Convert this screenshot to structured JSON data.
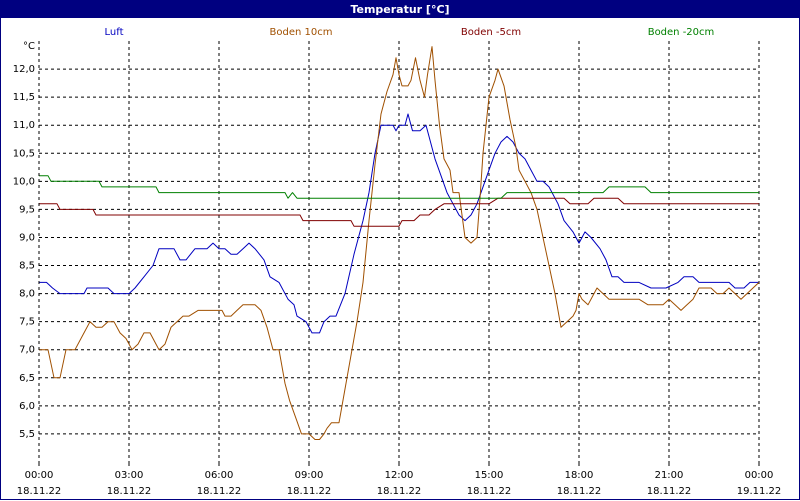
{
  "window": {
    "title": "Temperatur [°C]"
  },
  "chart_data": {
    "type": "line",
    "title": "Temperatur [°C]",
    "ylabel": "°C",
    "xlabel": "",
    "ylim": [
      5.0,
      12.5
    ],
    "xlim": [
      0,
      24
    ],
    "grid": true,
    "legend_position": "top",
    "yticks": [
      5.5,
      6.0,
      6.5,
      7.0,
      7.5,
      8.0,
      8.5,
      9.0,
      9.5,
      10.0,
      10.5,
      11.0,
      11.5,
      12.0
    ],
    "ytick_labels": [
      "5,5",
      "6,0",
      "6,5",
      "7,0",
      "7,5",
      "8,0",
      "8,5",
      "9,0",
      "9,5",
      "10,0",
      "10,5",
      "11,0",
      "11,5",
      "12,0"
    ],
    "xticks": [
      0,
      3,
      6,
      9,
      12,
      15,
      18,
      21,
      24
    ],
    "xtick_labels": [
      [
        "00:00",
        "18.11.22"
      ],
      [
        "03:00",
        "18.11.22"
      ],
      [
        "06:00",
        "18.11.22"
      ],
      [
        "09:00",
        "18.11.22"
      ],
      [
        "12:00",
        "18.11.22"
      ],
      [
        "15:00",
        "18.11.22"
      ],
      [
        "18:00",
        "18.11.22"
      ],
      [
        "21:00",
        "18.11.22"
      ],
      [
        "00:00",
        "19.11.22"
      ]
    ],
    "series": [
      {
        "name": "Luft",
        "color": "#0000c0",
        "points": [
          [
            0,
            8.2
          ],
          [
            0.25,
            8.2
          ],
          [
            0.45,
            8.1
          ],
          [
            0.7,
            8.0
          ],
          [
            1.5,
            8.0
          ],
          [
            1.6,
            8.1
          ],
          [
            2.3,
            8.1
          ],
          [
            2.5,
            8.0
          ],
          [
            3.0,
            8.0
          ],
          [
            3.2,
            8.1
          ],
          [
            3.5,
            8.3
          ],
          [
            3.8,
            8.5
          ],
          [
            4.0,
            8.8
          ],
          [
            4.5,
            8.8
          ],
          [
            4.7,
            8.6
          ],
          [
            4.9,
            8.6
          ],
          [
            5.2,
            8.8
          ],
          [
            5.6,
            8.8
          ],
          [
            5.8,
            8.9
          ],
          [
            6.0,
            8.8
          ],
          [
            6.2,
            8.8
          ],
          [
            6.4,
            8.7
          ],
          [
            6.6,
            8.7
          ],
          [
            6.8,
            8.8
          ],
          [
            7.0,
            8.9
          ],
          [
            7.2,
            8.8
          ],
          [
            7.5,
            8.6
          ],
          [
            7.7,
            8.3
          ],
          [
            8.0,
            8.2
          ],
          [
            8.3,
            7.9
          ],
          [
            8.5,
            7.8
          ],
          [
            8.6,
            7.6
          ],
          [
            8.9,
            7.5
          ],
          [
            9.1,
            7.3
          ],
          [
            9.35,
            7.3
          ],
          [
            9.5,
            7.5
          ],
          [
            9.7,
            7.6
          ],
          [
            9.9,
            7.6
          ],
          [
            10.2,
            8.0
          ],
          [
            10.5,
            8.7
          ],
          [
            10.8,
            9.3
          ],
          [
            11.0,
            9.8
          ],
          [
            11.2,
            10.5
          ],
          [
            11.4,
            11.0
          ],
          [
            11.8,
            11.0
          ],
          [
            11.9,
            10.9
          ],
          [
            12.0,
            11.0
          ],
          [
            12.2,
            11.0
          ],
          [
            12.3,
            11.2
          ],
          [
            12.45,
            10.9
          ],
          [
            12.7,
            10.9
          ],
          [
            12.9,
            11.0
          ],
          [
            13.0,
            10.8
          ],
          [
            13.2,
            10.4
          ],
          [
            13.4,
            10.1
          ],
          [
            13.6,
            9.8
          ],
          [
            13.8,
            9.6
          ],
          [
            14.0,
            9.4
          ],
          [
            14.2,
            9.3
          ],
          [
            14.4,
            9.4
          ],
          [
            14.6,
            9.6
          ],
          [
            14.8,
            9.9
          ],
          [
            15.0,
            10.2
          ],
          [
            15.2,
            10.5
          ],
          [
            15.4,
            10.7
          ],
          [
            15.6,
            10.8
          ],
          [
            15.8,
            10.7
          ],
          [
            16.0,
            10.5
          ],
          [
            16.2,
            10.4
          ],
          [
            16.4,
            10.2
          ],
          [
            16.6,
            10.0
          ],
          [
            16.8,
            10.0
          ],
          [
            17.0,
            9.9
          ],
          [
            17.3,
            9.6
          ],
          [
            17.5,
            9.3
          ],
          [
            17.8,
            9.1
          ],
          [
            18.0,
            8.9
          ],
          [
            18.2,
            9.1
          ],
          [
            18.4,
            9.0
          ],
          [
            18.7,
            8.8
          ],
          [
            18.9,
            8.6
          ],
          [
            19.1,
            8.3
          ],
          [
            19.3,
            8.3
          ],
          [
            19.5,
            8.2
          ],
          [
            20.0,
            8.2
          ],
          [
            20.4,
            8.1
          ],
          [
            20.9,
            8.1
          ],
          [
            21.3,
            8.2
          ],
          [
            21.5,
            8.3
          ],
          [
            21.8,
            8.3
          ],
          [
            22.0,
            8.2
          ],
          [
            23.0,
            8.2
          ],
          [
            23.2,
            8.1
          ],
          [
            23.5,
            8.1
          ],
          [
            23.7,
            8.2
          ],
          [
            24.0,
            8.2
          ]
        ]
      },
      {
        "name": "Boden 10cm",
        "color": "#a05000",
        "points": [
          [
            0,
            7.0
          ],
          [
            0.3,
            7.0
          ],
          [
            0.5,
            6.5
          ],
          [
            0.7,
            6.5
          ],
          [
            0.9,
            7.0
          ],
          [
            1.2,
            7.0
          ],
          [
            1.5,
            7.3
          ],
          [
            1.7,
            7.5
          ],
          [
            1.9,
            7.4
          ],
          [
            2.1,
            7.4
          ],
          [
            2.3,
            7.5
          ],
          [
            2.5,
            7.5
          ],
          [
            2.7,
            7.3
          ],
          [
            2.9,
            7.2
          ],
          [
            3.1,
            7.0
          ],
          [
            3.3,
            7.1
          ],
          [
            3.5,
            7.3
          ],
          [
            3.7,
            7.3
          ],
          [
            3.9,
            7.1
          ],
          [
            4.0,
            7.0
          ],
          [
            4.2,
            7.1
          ],
          [
            4.4,
            7.4
          ],
          [
            4.6,
            7.5
          ],
          [
            4.8,
            7.6
          ],
          [
            5.0,
            7.6
          ],
          [
            5.3,
            7.7
          ],
          [
            6.1,
            7.7
          ],
          [
            6.2,
            7.6
          ],
          [
            6.4,
            7.6
          ],
          [
            6.6,
            7.7
          ],
          [
            6.8,
            7.8
          ],
          [
            7.2,
            7.8
          ],
          [
            7.4,
            7.7
          ],
          [
            7.6,
            7.4
          ],
          [
            7.8,
            7.0
          ],
          [
            8.0,
            7.0
          ],
          [
            8.1,
            6.7
          ],
          [
            8.2,
            6.4
          ],
          [
            8.35,
            6.1
          ],
          [
            8.55,
            5.8
          ],
          [
            8.75,
            5.5
          ],
          [
            9.0,
            5.5
          ],
          [
            9.2,
            5.4
          ],
          [
            9.35,
            5.4
          ],
          [
            9.5,
            5.5
          ],
          [
            9.6,
            5.6
          ],
          [
            9.75,
            5.7
          ],
          [
            10.0,
            5.7
          ],
          [
            10.2,
            6.3
          ],
          [
            10.4,
            6.9
          ],
          [
            10.6,
            7.5
          ],
          [
            10.8,
            8.2
          ],
          [
            11.0,
            9.3
          ],
          [
            11.2,
            10.3
          ],
          [
            11.4,
            11.2
          ],
          [
            11.6,
            11.6
          ],
          [
            11.8,
            11.9
          ],
          [
            11.9,
            12.2
          ],
          [
            12.0,
            11.9
          ],
          [
            12.1,
            11.7
          ],
          [
            12.3,
            11.7
          ],
          [
            12.4,
            11.8
          ],
          [
            12.55,
            12.2
          ],
          [
            12.7,
            11.8
          ],
          [
            12.85,
            11.5
          ],
          [
            12.95,
            11.9
          ],
          [
            13.1,
            12.4
          ],
          [
            13.2,
            11.8
          ],
          [
            13.35,
            11.0
          ],
          [
            13.5,
            10.4
          ],
          [
            13.7,
            10.2
          ],
          [
            13.8,
            9.8
          ],
          [
            14.0,
            9.8
          ],
          [
            14.2,
            9.0
          ],
          [
            14.4,
            8.9
          ],
          [
            14.6,
            9.0
          ],
          [
            14.7,
            9.7
          ],
          [
            14.8,
            10.5
          ],
          [
            15.0,
            11.5
          ],
          [
            15.2,
            11.8
          ],
          [
            15.3,
            12.0
          ],
          [
            15.5,
            11.7
          ],
          [
            15.7,
            11.1
          ],
          [
            15.9,
            10.6
          ],
          [
            16.0,
            10.2
          ],
          [
            16.2,
            10.0
          ],
          [
            16.4,
            9.8
          ],
          [
            16.6,
            9.5
          ],
          [
            16.8,
            9.0
          ],
          [
            17.0,
            8.5
          ],
          [
            17.2,
            8.0
          ],
          [
            17.4,
            7.4
          ],
          [
            17.6,
            7.5
          ],
          [
            17.8,
            7.6
          ],
          [
            17.9,
            7.7
          ],
          [
            18.0,
            8.0
          ],
          [
            18.1,
            7.9
          ],
          [
            18.3,
            7.8
          ],
          [
            18.5,
            8.0
          ],
          [
            18.6,
            8.1
          ],
          [
            18.8,
            8.0
          ],
          [
            19.0,
            7.9
          ],
          [
            20.0,
            7.9
          ],
          [
            20.3,
            7.8
          ],
          [
            20.8,
            7.8
          ],
          [
            21.0,
            7.9
          ],
          [
            21.2,
            7.8
          ],
          [
            21.4,
            7.7
          ],
          [
            21.6,
            7.8
          ],
          [
            21.8,
            7.9
          ],
          [
            22.0,
            8.1
          ],
          [
            22.4,
            8.1
          ],
          [
            22.6,
            8.0
          ],
          [
            22.8,
            8.0
          ],
          [
            23.0,
            8.1
          ],
          [
            23.2,
            8.0
          ],
          [
            23.4,
            7.9
          ],
          [
            23.6,
            8.0
          ],
          [
            23.8,
            8.1
          ],
          [
            24.0,
            8.2
          ]
        ]
      },
      {
        "name": "Boden -5cm",
        "color": "#800000",
        "points": [
          [
            0,
            9.6
          ],
          [
            0.6,
            9.6
          ],
          [
            0.7,
            9.5
          ],
          [
            1.8,
            9.5
          ],
          [
            1.9,
            9.4
          ],
          [
            8.7,
            9.4
          ],
          [
            8.8,
            9.3
          ],
          [
            10.4,
            9.3
          ],
          [
            10.5,
            9.2
          ],
          [
            12.0,
            9.2
          ],
          [
            12.1,
            9.3
          ],
          [
            12.5,
            9.3
          ],
          [
            12.7,
            9.4
          ],
          [
            13.0,
            9.4
          ],
          [
            13.2,
            9.5
          ],
          [
            13.5,
            9.6
          ],
          [
            15.0,
            9.6
          ],
          [
            15.3,
            9.7
          ],
          [
            17.5,
            9.7
          ],
          [
            17.7,
            9.6
          ],
          [
            18.3,
            9.6
          ],
          [
            18.5,
            9.7
          ],
          [
            19.3,
            9.7
          ],
          [
            19.5,
            9.6
          ],
          [
            24.0,
            9.6
          ]
        ]
      },
      {
        "name": "Boden -20cm",
        "color": "#008000",
        "points": [
          [
            0,
            10.1
          ],
          [
            0.3,
            10.1
          ],
          [
            0.4,
            10.0
          ],
          [
            2.0,
            10.0
          ],
          [
            2.1,
            9.9
          ],
          [
            3.9,
            9.9
          ],
          [
            4.0,
            9.8
          ],
          [
            8.2,
            9.8
          ],
          [
            8.3,
            9.7
          ],
          [
            8.45,
            9.8
          ],
          [
            8.6,
            9.7
          ],
          [
            15.4,
            9.7
          ],
          [
            15.6,
            9.8
          ],
          [
            18.8,
            9.8
          ],
          [
            19.0,
            9.9
          ],
          [
            20.2,
            9.9
          ],
          [
            20.4,
            9.8
          ],
          [
            24.0,
            9.8
          ]
        ]
      }
    ]
  }
}
